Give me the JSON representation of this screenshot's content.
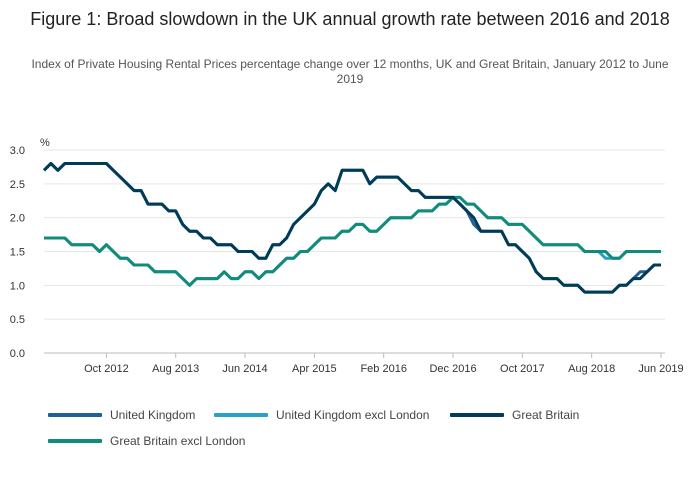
{
  "chart_data": {
    "type": "line",
    "title": "Figure 1: Broad slowdown in the UK annual growth rate between 2016 and 2018",
    "subtitle": "Index of Private Housing Rental Prices percentage change over 12 months, UK and Great Britain, January 2012 to June 2019",
    "ylabel": "%",
    "ylim": [
      0,
      3.0
    ],
    "y_ticks": [
      "0.0",
      "0.5",
      "1.0",
      "1.5",
      "2.0",
      "2.5",
      "3.0"
    ],
    "x_start": "2012-01",
    "x_ticks": [
      {
        "month": "2012-10",
        "label": "Oct 2012"
      },
      {
        "month": "2013-08",
        "label": "Aug 2013"
      },
      {
        "month": "2014-06",
        "label": "Jun 2014"
      },
      {
        "month": "2015-04",
        "label": "Apr 2015"
      },
      {
        "month": "2016-02",
        "label": "Feb 2016"
      },
      {
        "month": "2016-12",
        "label": "Dec 2016"
      },
      {
        "month": "2017-10",
        "label": "Oct 2017"
      },
      {
        "month": "2018-08",
        "label": "Aug 2018"
      },
      {
        "month": "2019-06",
        "label": "Jun 2019"
      }
    ],
    "grid": true,
    "legend_position": "bottom",
    "series": [
      {
        "name": "United Kingdom",
        "color": "#206095",
        "values": [
          2.7,
          2.8,
          2.7,
          2.8,
          2.8,
          2.8,
          2.8,
          2.8,
          2.8,
          2.8,
          2.7,
          2.6,
          2.5,
          2.4,
          2.4,
          2.2,
          2.2,
          2.2,
          2.1,
          2.1,
          1.9,
          1.8,
          1.8,
          1.7,
          1.7,
          1.6,
          1.6,
          1.6,
          1.5,
          1.5,
          1.5,
          1.4,
          1.4,
          1.6,
          1.6,
          1.7,
          1.9,
          2.0,
          2.1,
          2.2,
          2.4,
          2.5,
          2.4,
          2.7,
          2.7,
          2.7,
          2.7,
          2.5,
          2.6,
          2.6,
          2.6,
          2.6,
          2.5,
          2.4,
          2.4,
          2.3,
          2.3,
          2.3,
          2.3,
          2.3,
          2.2,
          2.1,
          1.9,
          1.8,
          1.8,
          1.8,
          1.8,
          1.6,
          1.6,
          1.5,
          1.4,
          1.2,
          1.1,
          1.1,
          1.1,
          1.0,
          1.0,
          1.0,
          0.9,
          0.9,
          0.9,
          0.9,
          0.9,
          1.0,
          1.0,
          1.1,
          1.2,
          1.2,
          1.3,
          1.3
        ]
      },
      {
        "name": "United Kingdom excl London",
        "color": "#27a0cc",
        "values": [
          1.7,
          1.7,
          1.7,
          1.7,
          1.6,
          1.6,
          1.6,
          1.6,
          1.5,
          1.6,
          1.5,
          1.4,
          1.4,
          1.3,
          1.3,
          1.3,
          1.2,
          1.2,
          1.2,
          1.2,
          1.1,
          1.0,
          1.1,
          1.1,
          1.1,
          1.1,
          1.2,
          1.1,
          1.1,
          1.2,
          1.2,
          1.1,
          1.2,
          1.2,
          1.3,
          1.4,
          1.4,
          1.5,
          1.5,
          1.6,
          1.7,
          1.7,
          1.7,
          1.8,
          1.8,
          1.9,
          1.9,
          1.8,
          1.8,
          1.9,
          2.0,
          2.0,
          2.0,
          2.0,
          2.1,
          2.1,
          2.1,
          2.2,
          2.2,
          2.3,
          2.3,
          2.2,
          2.2,
          2.1,
          2.0,
          2.0,
          2.0,
          1.9,
          1.9,
          1.9,
          1.8,
          1.7,
          1.6,
          1.6,
          1.6,
          1.6,
          1.6,
          1.6,
          1.5,
          1.5,
          1.5,
          1.4,
          1.4,
          1.4,
          1.5,
          1.5,
          1.5,
          1.5,
          1.5,
          1.5
        ]
      },
      {
        "name": "Great Britain",
        "color": "#003c57",
        "values": [
          2.7,
          2.8,
          2.7,
          2.8,
          2.8,
          2.8,
          2.8,
          2.8,
          2.8,
          2.8,
          2.7,
          2.6,
          2.5,
          2.4,
          2.4,
          2.2,
          2.2,
          2.2,
          2.1,
          2.1,
          1.9,
          1.8,
          1.8,
          1.7,
          1.7,
          1.6,
          1.6,
          1.6,
          1.5,
          1.5,
          1.5,
          1.4,
          1.4,
          1.6,
          1.6,
          1.7,
          1.9,
          2.0,
          2.1,
          2.2,
          2.4,
          2.5,
          2.4,
          2.7,
          2.7,
          2.7,
          2.7,
          2.5,
          2.6,
          2.6,
          2.6,
          2.6,
          2.5,
          2.4,
          2.4,
          2.3,
          2.3,
          2.3,
          2.3,
          2.3,
          2.2,
          2.1,
          2.0,
          1.8,
          1.8,
          1.8,
          1.8,
          1.6,
          1.6,
          1.5,
          1.4,
          1.2,
          1.1,
          1.1,
          1.1,
          1.0,
          1.0,
          1.0,
          0.9,
          0.9,
          0.9,
          0.9,
          0.9,
          1.0,
          1.0,
          1.1,
          1.1,
          1.2,
          1.3,
          1.3
        ]
      },
      {
        "name": "Great Britain excl London",
        "color": "#118c7b",
        "values": [
          1.7,
          1.7,
          1.7,
          1.7,
          1.6,
          1.6,
          1.6,
          1.6,
          1.5,
          1.6,
          1.5,
          1.4,
          1.4,
          1.3,
          1.3,
          1.3,
          1.2,
          1.2,
          1.2,
          1.2,
          1.1,
          1.0,
          1.1,
          1.1,
          1.1,
          1.1,
          1.2,
          1.1,
          1.1,
          1.2,
          1.2,
          1.1,
          1.2,
          1.2,
          1.3,
          1.4,
          1.4,
          1.5,
          1.5,
          1.6,
          1.7,
          1.7,
          1.7,
          1.8,
          1.8,
          1.9,
          1.9,
          1.8,
          1.8,
          1.9,
          2.0,
          2.0,
          2.0,
          2.0,
          2.1,
          2.1,
          2.1,
          2.2,
          2.2,
          2.3,
          2.3,
          2.2,
          2.2,
          2.1,
          2.0,
          2.0,
          2.0,
          1.9,
          1.9,
          1.9,
          1.8,
          1.7,
          1.6,
          1.6,
          1.6,
          1.6,
          1.6,
          1.6,
          1.5,
          1.5,
          1.5,
          1.5,
          1.4,
          1.4,
          1.5,
          1.5,
          1.5,
          1.5,
          1.5,
          1.5
        ]
      }
    ]
  }
}
